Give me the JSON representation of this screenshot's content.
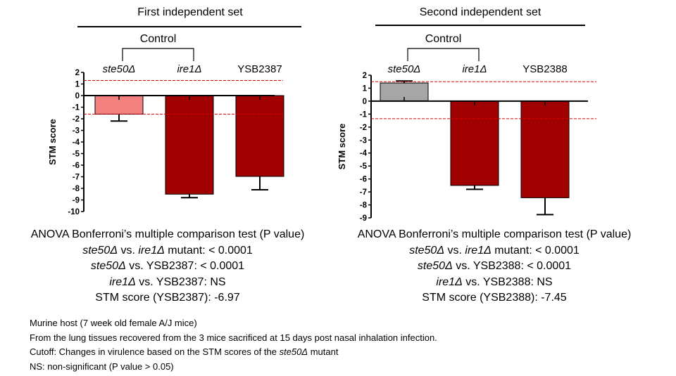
{
  "colors": {
    "ste50_set1": "#f58080",
    "ste50_set2": "#a6a6a6",
    "mutant": "#a00000",
    "cutoff_line": "#e00000"
  },
  "chart_data": [
    {
      "type": "bar",
      "title": "First independent set",
      "bracket_label": "Control",
      "ylabel": "STM score",
      "ylim": [
        -10,
        2
      ],
      "yticks": [
        "2",
        "1",
        "0",
        "-1",
        "-2",
        "-3",
        "-4",
        "-5",
        "-6",
        "-7",
        "-8",
        "-9",
        "-10"
      ],
      "categories": [
        "ste50Δ",
        "ire1Δ",
        "YSB2387"
      ],
      "category_italic": [
        true,
        true,
        false
      ],
      "values": [
        -1.6,
        -8.5,
        -6.97
      ],
      "error_bars": [
        0.6,
        0.3,
        1.15
      ],
      "cutoff_lines": [
        1.3,
        -1.6
      ],
      "bar_colors": [
        "#f58080",
        "#a00000",
        "#a00000"
      ]
    },
    {
      "type": "bar",
      "title": "Second independent set",
      "bracket_label": "Control",
      "ylabel": "STM score",
      "ylim": [
        -9,
        2
      ],
      "yticks": [
        "2",
        "1",
        "0",
        "-1",
        "-2",
        "-3",
        "-4",
        "-5",
        "-6",
        "-7",
        "-8",
        "-9"
      ],
      "categories": [
        "ste50Δ",
        "ire1Δ",
        "YSB2388"
      ],
      "category_italic": [
        true,
        true,
        false
      ],
      "values": [
        1.4,
        -6.5,
        -7.45
      ],
      "error_bars": [
        0.15,
        0.3,
        1.3
      ],
      "cutoff_lines": [
        1.5,
        -1.35
      ],
      "bar_colors": [
        "#a6a6a6",
        "#a00000",
        "#a00000"
      ]
    }
  ],
  "stats1": {
    "heading": "ANOVA Bonferroni’s multiple comparison test (P value)",
    "r1a": "ste50Δ",
    "r1b": " vs. ",
    "r1c": "ire1Δ",
    "r1d": " mutant:  < 0.0001",
    "r2a": "ste50Δ",
    "r2b": " vs. YSB2387: < 0.0001",
    "r3a": "ire1Δ",
    "r3b": " vs. YSB2387: NS",
    "r4": "STM score (YSB2387): -6.97"
  },
  "stats2": {
    "heading": "ANOVA Bonferroni’s multiple comparison test (P value)",
    "r1a": "ste50Δ",
    "r1b": " vs. ",
    "r1c": "ire1Δ",
    "r1d": " mutant: < 0.0001",
    "r2a": "ste50Δ",
    "r2b": " vs. YSB2388:  < 0.0001",
    "r3a": "ire1Δ",
    "r3b": " vs. YSB2388: NS",
    "r4": "STM score (YSB2388): -7.45"
  },
  "footnotes": {
    "line1": "Murine host (7 week old female A/J mice)",
    "line2": "From  the lung tissues recovered from the 3 mice sacrificed at 15 days post nasal inhalation infection.",
    "line3a": "Cutoff: Changes in virulence based on the STM scores of the ",
    "line3b": "ste50Δ",
    "line3c": " mutant",
    "line4": "NS: non-significant (P value > 0.05)"
  }
}
